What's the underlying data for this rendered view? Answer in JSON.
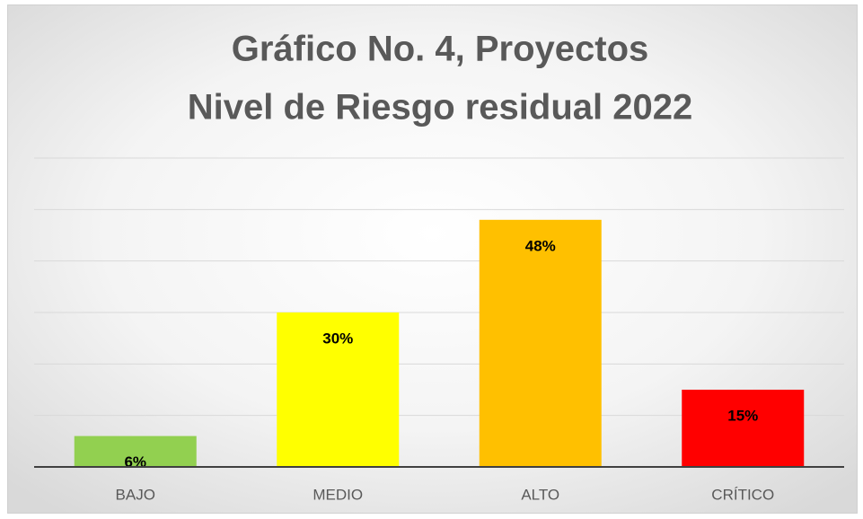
{
  "chart_data": {
    "type": "bar",
    "title": [
      "Gráfico No. 4, Proyectos",
      "Nivel de Riesgo residual 2022"
    ],
    "categories": [
      "BAJO",
      "MEDIO",
      "ALTO",
      "CRÍTICO"
    ],
    "values": [
      6,
      30,
      48,
      15
    ],
    "value_labels": [
      "6%",
      "30%",
      "48%",
      "15%"
    ],
    "colors": [
      "#92d050",
      "#ffff00",
      "#ffc000",
      "#ff0000"
    ],
    "ylim": [
      0,
      60
    ],
    "yticks": [
      0,
      10,
      20,
      30,
      40,
      50,
      60
    ],
    "grid": true
  }
}
